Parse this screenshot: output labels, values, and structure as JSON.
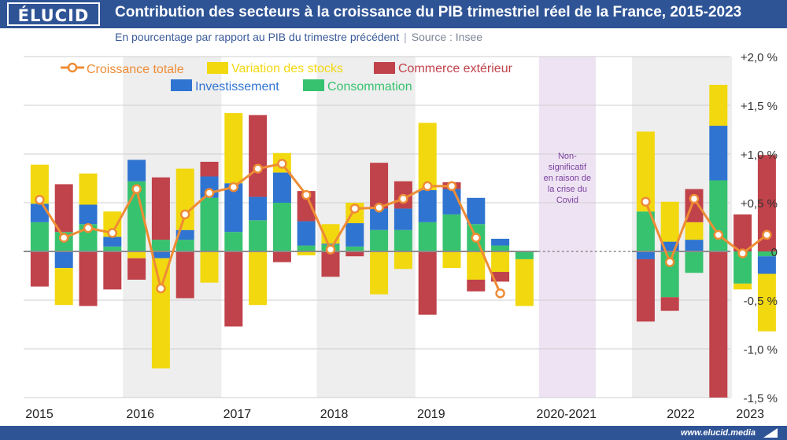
{
  "header": {
    "logo": "ÉLUCID",
    "title": "Contribution des secteurs à la croissance du PIB trimestriel réel de la France, 2015-2023"
  },
  "subtitle": {
    "text": "En pourcentage par rapport au PIB du trimestre précédent",
    "source": "Source : Insee"
  },
  "footer": {
    "url": "www.elucid.media"
  },
  "covid_note": [
    "Non-",
    "significatif",
    "en raison de",
    "la crise du",
    "Covid"
  ],
  "colors": {
    "stocks": "#f2d80f",
    "commerce": "#c0424a",
    "investissement": "#2f74d0",
    "consommation": "#37c26f",
    "total": "#ee8c35",
    "covid_band": "#eee3f3",
    "alt_band": "#eeeeee"
  },
  "chart_data": {
    "type": "bar",
    "stacked": true,
    "title": "Contribution des secteurs à la croissance du PIB trimestriel réel de la France, 2015-2023",
    "ylabel": "",
    "ylim": [
      -1.5,
      2.0
    ],
    "yticks": [
      2.0,
      1.5,
      1.0,
      0.5,
      0,
      -0.5,
      -1.0,
      -1.5
    ],
    "ytick_labels": [
      "+2,0 %",
      "+1,5 %",
      "+1,0 %",
      "+0,5 %",
      "0",
      "-0,5 %",
      "-1,0 %",
      "-1,5 %"
    ],
    "x_labels": [
      "2015",
      "2016",
      "2017",
      "2018",
      "2019",
      "2020-2021",
      "2022",
      "2023"
    ],
    "legend": [
      "Croissance totale",
      "Variation des stocks",
      "Commerce extérieur",
      "Investissement",
      "Consommation"
    ],
    "legend_position": "top-left",
    "grid": true,
    "covid_gap_after_quarter": 20,
    "categories": [
      "2015 T1",
      "2015 T2",
      "2015 T3",
      "2015 T4",
      "2016 T1",
      "2016 T2",
      "2016 T3",
      "2016 T4",
      "2017 T1",
      "2017 T2",
      "2017 T3",
      "2017 T4",
      "2018 T1",
      "2018 T2",
      "2018 T3",
      "2018 T4",
      "2019 T1",
      "2019 T2",
      "2019 T3",
      "2019 T4",
      "2020 T1",
      "2022 T1",
      "2022 T2",
      "2022 T3",
      "2022 T4",
      "2023 T1",
      "2023 T2"
    ],
    "series": [
      {
        "name": "Consommation",
        "values": [
          0.3,
          0.2,
          0.28,
          0.05,
          0.72,
          0.12,
          0.12,
          0.55,
          0.2,
          0.32,
          0.5,
          0.06,
          0.07,
          0.05,
          0.22,
          0.22,
          0.3,
          0.38,
          0.28,
          0.06,
          -0.08,
          0.41,
          -0.47,
          -0.22,
          0.73,
          -0.33,
          -0.05
        ]
      },
      {
        "name": "Investissement",
        "values": [
          0.19,
          -0.17,
          0.2,
          0.1,
          0.22,
          -0.07,
          0.1,
          0.22,
          0.5,
          0.24,
          0.31,
          0.25,
          0.01,
          0.24,
          0.22,
          0.22,
          0.33,
          0.26,
          0.27,
          0.07,
          0,
          -0.08,
          0.1,
          0.12,
          0.56,
          0,
          -0.18
        ]
      },
      {
        "name": "Variation des stocks",
        "values": [
          0.4,
          -0.38,
          0.32,
          0.26,
          -0.07,
          -1.13,
          0.63,
          -0.32,
          0.72,
          -0.55,
          0.2,
          -0.04,
          0.2,
          0.21,
          -0.44,
          -0.18,
          0.69,
          -0.17,
          -0.29,
          -0.21,
          -0.48,
          0.82,
          0.41,
          0.18,
          0.42,
          -0.06,
          -0.59
        ]
      },
      {
        "name": "Commerce extérieur",
        "values": [
          -0.36,
          0.49,
          -0.56,
          -0.39,
          -0.22,
          0.64,
          -0.48,
          0.15,
          -0.77,
          0.84,
          -0.11,
          0.31,
          -0.26,
          -0.05,
          0.47,
          0.28,
          -0.65,
          0.07,
          -0.12,
          -0.1,
          0,
          -0.64,
          -0.14,
          0.34,
          -1.52,
          0.38,
          0.99
        ]
      }
    ],
    "total": {
      "name": "Croissance totale",
      "values": [
        0.53,
        0.14,
        0.24,
        0.19,
        0.64,
        -0.38,
        0.38,
        0.6,
        0.66,
        0.85,
        0.9,
        0.58,
        0.02,
        0.44,
        0.45,
        0.54,
        0.67,
        0.67,
        0.14,
        -0.43,
        null,
        0.51,
        -0.11,
        0.54,
        0.17,
        -0.02,
        0.17
      ]
    }
  }
}
